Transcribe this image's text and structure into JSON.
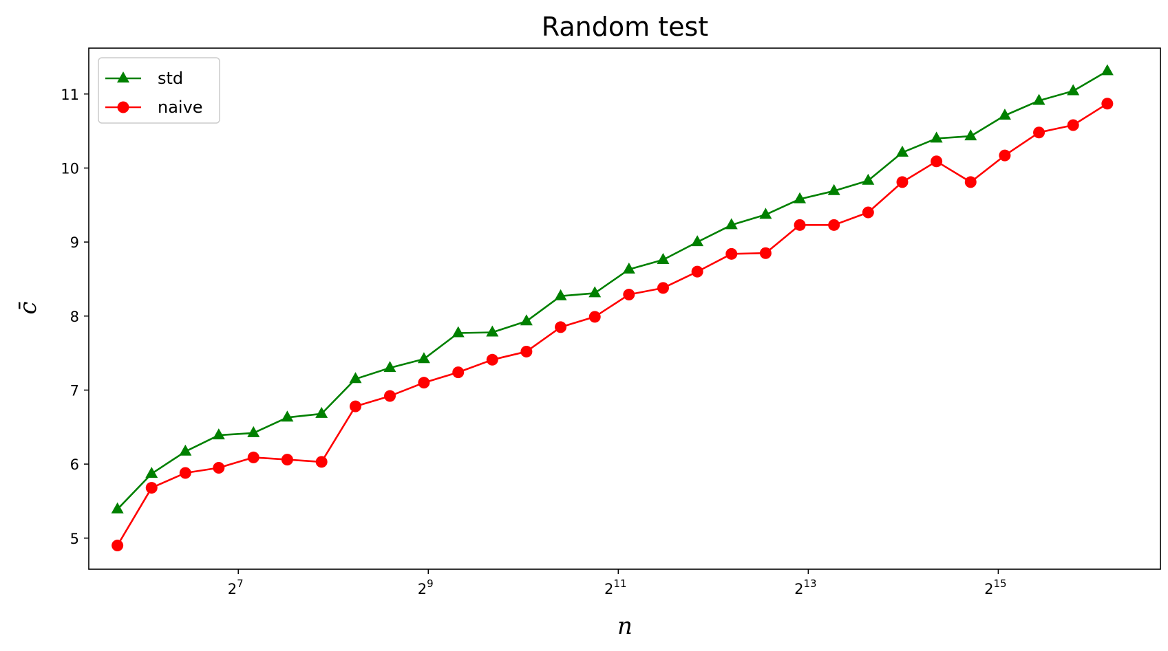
{
  "chart_data": {
    "type": "line",
    "title": "Random test",
    "xlabel": "n",
    "ylabel": "c̄",
    "x_scale": "log2",
    "xlim": [
      43,
      107000
    ],
    "ylim": [
      4.58,
      11.62
    ],
    "x_ticks": [
      {
        "value": 128,
        "base": "2",
        "exp": "7"
      },
      {
        "value": 512,
        "base": "2",
        "exp": "9"
      },
      {
        "value": 2048,
        "base": "2",
        "exp": "11"
      },
      {
        "value": 8192,
        "base": "2",
        "exp": "13"
      },
      {
        "value": 32768,
        "base": "2",
        "exp": "15"
      }
    ],
    "y_ticks": [
      5,
      6,
      7,
      8,
      9,
      10,
      11
    ],
    "y_tick_labels": [
      "5",
      "6",
      "7",
      "8",
      "9",
      "10",
      "11"
    ],
    "legend": "top-left",
    "grid": false,
    "x": [
      53,
      68,
      87,
      111,
      143,
      183,
      235,
      301,
      387,
      496,
      637,
      817,
      1048,
      1345,
      1726,
      2214,
      2841,
      3646,
      4678,
      6002,
      7702,
      9883,
      12681,
      16272,
      20879,
      26791,
      34376,
      44110,
      56601,
      72627
    ],
    "series": [
      {
        "name": "std",
        "color": "#008000",
        "marker": "triangle",
        "values": [
          5.39,
          5.87,
          6.17,
          6.39,
          6.42,
          6.63,
          6.68,
          7.15,
          7.3,
          7.42,
          7.77,
          7.78,
          7.93,
          8.27,
          8.31,
          8.63,
          8.76,
          9.0,
          9.23,
          9.37,
          9.58,
          9.69,
          9.83,
          10.21,
          10.4,
          10.43,
          10.71,
          10.91,
          11.04,
          11.31
        ]
      },
      {
        "name": "naive",
        "color": "#ff0000",
        "marker": "circle",
        "values": [
          4.9,
          5.68,
          5.88,
          5.95,
          6.09,
          6.06,
          6.03,
          6.78,
          6.92,
          7.1,
          7.24,
          7.41,
          7.52,
          7.85,
          7.99,
          8.29,
          8.38,
          8.6,
          8.84,
          8.85,
          9.23,
          9.23,
          9.4,
          9.81,
          10.09,
          9.81,
          10.17,
          10.48,
          10.58,
          10.87
        ]
      }
    ]
  }
}
